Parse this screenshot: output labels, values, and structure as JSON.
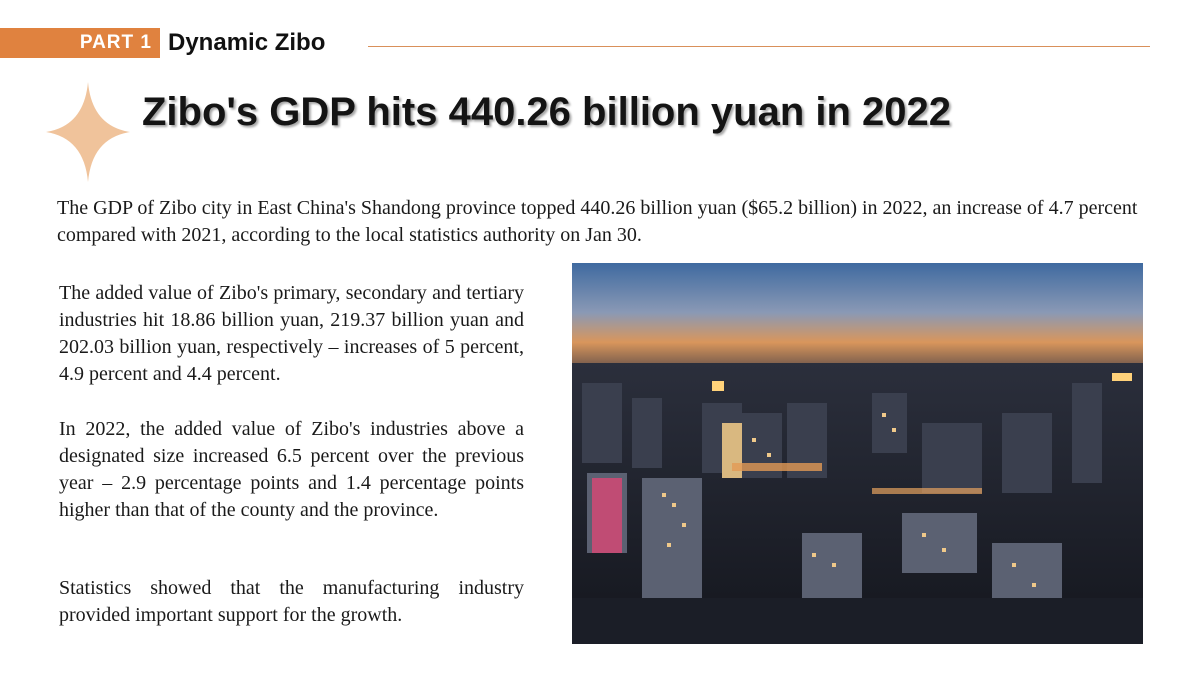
{
  "header": {
    "part_label": "PART  1",
    "section_title": "Dynamic Zibo"
  },
  "headline": "Zibo's GDP hits 440.26 billion yuan in 2022",
  "lead": "The GDP of Zibo city in East China's Shandong province topped 440.26 billion yuan ($65.2 billion) in 2022, an increase of 4.7 percent compared with 2021, according to the local statistics authority on Jan 30.",
  "body": {
    "paragraph_1": "The added value of Zibo's primary, secondary and tertiary industries hit 18.86 billion yuan, 219.37 billion yuan and 202.03 billion yuan, respectively – increases of 5 percent, 4.9 percent and 4.4 percent.",
    "paragraph_2": "In 2022, the added value of Zibo's industries above a designated size increased 6.5 percent over the previous year – 2.9 percentage points and 1.4 percentage points higher than that of the county and the province.",
    "paragraph_3": "Statistics showed that the manufacturing industry provided important support for the growth."
  },
  "colors": {
    "accent": "#e0823f",
    "star": "#f0c39b"
  },
  "icons": {
    "decoration": "four-point-star-icon"
  }
}
